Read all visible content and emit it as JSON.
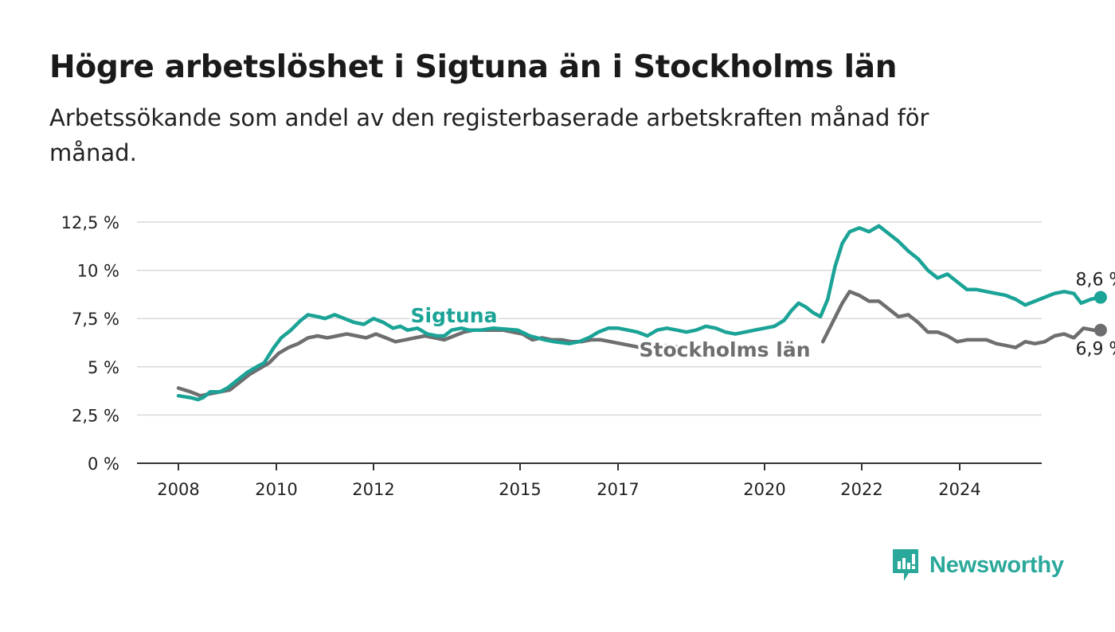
{
  "title": "Högre arbetslöshet i Sigtuna än i Stockholms län",
  "subtitle": "Arbetssökande som andel av den registerbaserade arbetskraften månad för månad.",
  "brand": {
    "name": "Newsworthy",
    "icon": "bar-chart-speech-bubble-icon",
    "color": "#2aa89a"
  },
  "chart_data": {
    "type": "line",
    "title": "Högre arbetslöshet i Sigtuna än i Stockholms län",
    "subtitle": "Arbetssökande som andel av den registerbaserade arbetskraften månad för månad.",
    "ylim": [
      0,
      12.5
    ],
    "y_ticks": [
      0,
      2.5,
      5,
      7.5,
      10,
      12.5
    ],
    "y_tick_labels": [
      "0 %",
      "2,5 %",
      "5 %",
      "7,5 %",
      "10 %",
      "12,5 %"
    ],
    "xlim": [
      2007.2,
      2025.9
    ],
    "x_ticks": [
      2008,
      2010,
      2012,
      2015,
      2017,
      2020,
      2022,
      2024
    ],
    "x_tick_labels": [
      "2008",
      "2010",
      "2012",
      "2015",
      "2017",
      "2020",
      "2022",
      "2024"
    ],
    "grid": true,
    "legend": "inline labels",
    "series": [
      {
        "name": "Sigtuna",
        "color": "#1aa396",
        "end_label": "8,6 %",
        "points": [
          [
            2008.0,
            3.5
          ],
          [
            2008.25,
            3.4
          ],
          [
            2008.4,
            3.3
          ],
          [
            2008.5,
            3.4
          ],
          [
            2008.65,
            3.7
          ],
          [
            2008.85,
            3.7
          ],
          [
            2009.0,
            3.9
          ],
          [
            2009.2,
            4.3
          ],
          [
            2009.4,
            4.7
          ],
          [
            2009.6,
            5.0
          ],
          [
            2009.75,
            5.2
          ],
          [
            2009.95,
            6.0
          ],
          [
            2010.1,
            6.5
          ],
          [
            2010.3,
            6.9
          ],
          [
            2010.5,
            7.4
          ],
          [
            2010.65,
            7.7
          ],
          [
            2010.85,
            7.6
          ],
          [
            2011.0,
            7.5
          ],
          [
            2011.2,
            7.7
          ],
          [
            2011.4,
            7.5
          ],
          [
            2011.6,
            7.3
          ],
          [
            2011.8,
            7.2
          ],
          [
            2012.0,
            7.5
          ],
          [
            2012.2,
            7.3
          ],
          [
            2012.4,
            7.0
          ],
          [
            2012.55,
            7.1
          ],
          [
            2012.7,
            6.9
          ],
          [
            2012.9,
            7.0
          ],
          [
            2013.1,
            6.7
          ],
          [
            2013.3,
            6.6
          ],
          [
            2013.45,
            6.6
          ],
          [
            2013.6,
            6.9
          ],
          [
            2013.8,
            7.0
          ],
          [
            2013.95,
            6.9
          ],
          [
            2014.2,
            6.9
          ],
          [
            2014.45,
            7.0
          ],
          [
            2014.7,
            6.95
          ],
          [
            2014.95,
            6.9
          ],
          [
            2015.2,
            6.6
          ],
          [
            2015.5,
            6.4
          ],
          [
            2015.7,
            6.3
          ],
          [
            2016.0,
            6.2
          ],
          [
            2016.2,
            6.3
          ],
          [
            2016.4,
            6.5
          ],
          [
            2016.6,
            6.8
          ],
          [
            2016.8,
            7.0
          ],
          [
            2017.0,
            7.0
          ],
          [
            2017.2,
            6.9
          ],
          [
            2017.4,
            6.8
          ],
          [
            2017.6,
            6.6
          ],
          [
            2017.8,
            6.9
          ],
          [
            2018.0,
            7.0
          ],
          [
            2018.2,
            6.9
          ],
          [
            2018.4,
            6.8
          ],
          [
            2018.6,
            6.9
          ],
          [
            2018.8,
            7.1
          ],
          [
            2019.0,
            7.0
          ],
          [
            2019.2,
            6.8
          ],
          [
            2019.4,
            6.7
          ],
          [
            2019.6,
            6.8
          ],
          [
            2019.8,
            6.9
          ],
          [
            2020.0,
            7.0
          ],
          [
            2020.2,
            7.1
          ],
          [
            2020.4,
            7.4
          ],
          [
            2020.55,
            7.9
          ],
          [
            2020.7,
            8.3
          ],
          [
            2020.85,
            8.1
          ],
          [
            2021.0,
            7.8
          ],
          [
            2021.15,
            7.6
          ],
          [
            2021.3,
            8.5
          ],
          [
            2021.45,
            10.2
          ],
          [
            2021.6,
            11.4
          ],
          [
            2021.75,
            12.0
          ],
          [
            2021.95,
            12.2
          ],
          [
            2022.15,
            12.0
          ],
          [
            2022.35,
            12.3
          ],
          [
            2022.55,
            11.9
          ],
          [
            2022.75,
            11.5
          ],
          [
            2022.95,
            11.0
          ],
          [
            2023.15,
            10.6
          ],
          [
            2023.35,
            10.0
          ],
          [
            2023.55,
            9.6
          ],
          [
            2023.75,
            9.8
          ],
          [
            2023.95,
            9.4
          ],
          [
            2024.15,
            9.0
          ],
          [
            2024.35,
            9.0
          ],
          [
            2024.55,
            8.9
          ],
          [
            2024.75,
            8.8
          ],
          [
            2024.95,
            8.7
          ],
          [
            2025.15,
            8.5
          ],
          [
            2025.35,
            8.2
          ],
          [
            2025.55,
            8.4
          ],
          [
            2025.75,
            8.6
          ],
          [
            2025.95,
            8.8
          ],
          [
            2026.15,
            8.9
          ],
          [
            2026.35,
            8.8
          ],
          [
            2026.5,
            8.3
          ],
          [
            2026.7,
            8.5
          ],
          [
            2026.9,
            8.6
          ]
        ]
      },
      {
        "name": "Stockholms län",
        "color": "#6e6e70",
        "end_label": "6,9 %",
        "points": [
          [
            2008.0,
            3.9
          ],
          [
            2008.25,
            3.7
          ],
          [
            2008.45,
            3.5
          ],
          [
            2008.65,
            3.6
          ],
          [
            2008.85,
            3.7
          ],
          [
            2009.05,
            3.8
          ],
          [
            2009.25,
            4.2
          ],
          [
            2009.45,
            4.6
          ],
          [
            2009.65,
            4.9
          ],
          [
            2009.85,
            5.2
          ],
          [
            2010.05,
            5.7
          ],
          [
            2010.25,
            6.0
          ],
          [
            2010.45,
            6.2
          ],
          [
            2010.65,
            6.5
          ],
          [
            2010.85,
            6.6
          ],
          [
            2011.05,
            6.5
          ],
          [
            2011.25,
            6.6
          ],
          [
            2011.45,
            6.7
          ],
          [
            2011.65,
            6.6
          ],
          [
            2011.85,
            6.5
          ],
          [
            2012.05,
            6.7
          ],
          [
            2012.25,
            6.5
          ],
          [
            2012.45,
            6.3
          ],
          [
            2012.65,
            6.4
          ],
          [
            2012.85,
            6.5
          ],
          [
            2013.05,
            6.6
          ],
          [
            2013.25,
            6.5
          ],
          [
            2013.45,
            6.4
          ],
          [
            2013.65,
            6.6
          ],
          [
            2013.85,
            6.8
          ],
          [
            2014.05,
            6.9
          ],
          [
            2014.25,
            6.9
          ],
          [
            2014.45,
            6.9
          ],
          [
            2014.65,
            6.9
          ],
          [
            2014.85,
            6.8
          ],
          [
            2015.05,
            6.7
          ],
          [
            2015.25,
            6.4
          ],
          [
            2015.45,
            6.5
          ],
          [
            2015.65,
            6.4
          ],
          [
            2015.85,
            6.4
          ],
          [
            2016.05,
            6.3
          ],
          [
            2016.25,
            6.3
          ],
          [
            2016.45,
            6.4
          ],
          [
            2016.65,
            6.4
          ],
          [
            2016.85,
            6.3
          ],
          [
            2017.05,
            6.2
          ],
          [
            2017.25,
            6.1
          ],
          [
            2017.45,
            6.0
          ],
          [
            2017.65,
            6.1
          ],
          [
            2017.85,
            6.1
          ],
          [
            2018.05,
            6.1
          ],
          [
            2018.25,
            6.0
          ]
        ],
        "points2": [
          [
            2021.2,
            6.3
          ],
          [
            2021.4,
            7.3
          ],
          [
            2021.6,
            8.3
          ],
          [
            2021.75,
            8.9
          ],
          [
            2021.95,
            8.7
          ],
          [
            2022.15,
            8.4
          ],
          [
            2022.35,
            8.4
          ],
          [
            2022.55,
            8.0
          ],
          [
            2022.75,
            7.6
          ],
          [
            2022.95,
            7.7
          ],
          [
            2023.15,
            7.3
          ],
          [
            2023.35,
            6.8
          ],
          [
            2023.55,
            6.8
          ],
          [
            2023.75,
            6.6
          ],
          [
            2023.95,
            6.3
          ],
          [
            2024.15,
            6.4
          ],
          [
            2024.35,
            6.4
          ],
          [
            2024.55,
            6.4
          ],
          [
            2024.75,
            6.2
          ],
          [
            2024.95,
            6.1
          ],
          [
            2025.15,
            6.0
          ],
          [
            2025.35,
            6.3
          ],
          [
            2025.55,
            6.2
          ],
          [
            2025.75,
            6.3
          ],
          [
            2025.95,
            6.6
          ],
          [
            2026.15,
            6.7
          ],
          [
            2026.35,
            6.5
          ],
          [
            2026.55,
            7.0
          ],
          [
            2026.75,
            6.9
          ],
          [
            2026.9,
            6.9
          ]
        ]
      }
    ]
  }
}
